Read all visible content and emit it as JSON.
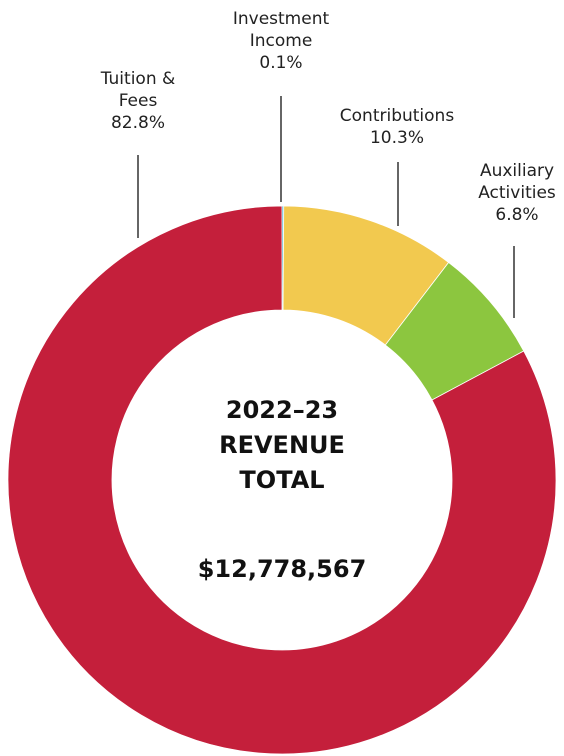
{
  "chart_data": {
    "type": "donut",
    "title": "2022–23 REVENUE TOTAL",
    "total": "$12,778,567",
    "categories": [
      "Investment Income",
      "Contributions",
      "Auxiliary Activities",
      "Tuition & Fees"
    ],
    "values": [
      0.1,
      10.3,
      6.8,
      82.8
    ],
    "value_labels": [
      "0.1%",
      "10.3%",
      "6.8%",
      "82.8%"
    ],
    "colors": [
      "#2aa5c9",
      "#f2c94f",
      "#8cc63f",
      "#c41f3b"
    ]
  }
}
